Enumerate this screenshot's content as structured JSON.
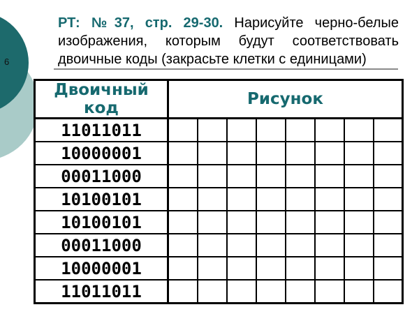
{
  "slide": {
    "number": "6",
    "title": {
      "highlight": "РТ: №37, стр. 29-30.",
      "rest_lines": [
        "Нарисуйте черно-белые",
        "изображения, которым будут соответствовать",
        "двоичные коды (закрасьте клетки с единицами)"
      ]
    }
  },
  "table": {
    "headers": {
      "binary_code": "Двоичный код",
      "picture": "Рисунок"
    },
    "picture_grid_columns": 8,
    "rows": [
      "11011011",
      "10000001",
      "00011000",
      "10100101",
      "10100101",
      "00011000",
      "10000001",
      "11011011"
    ]
  },
  "colors": {
    "accent_teal": "#16696f",
    "circle_dark_teal": "#1d6a6c",
    "circle_light_teal": "#a9cbc8",
    "divider_gray": "#8a8a8a",
    "table_border": "#000000",
    "code_text": "#000000"
  }
}
